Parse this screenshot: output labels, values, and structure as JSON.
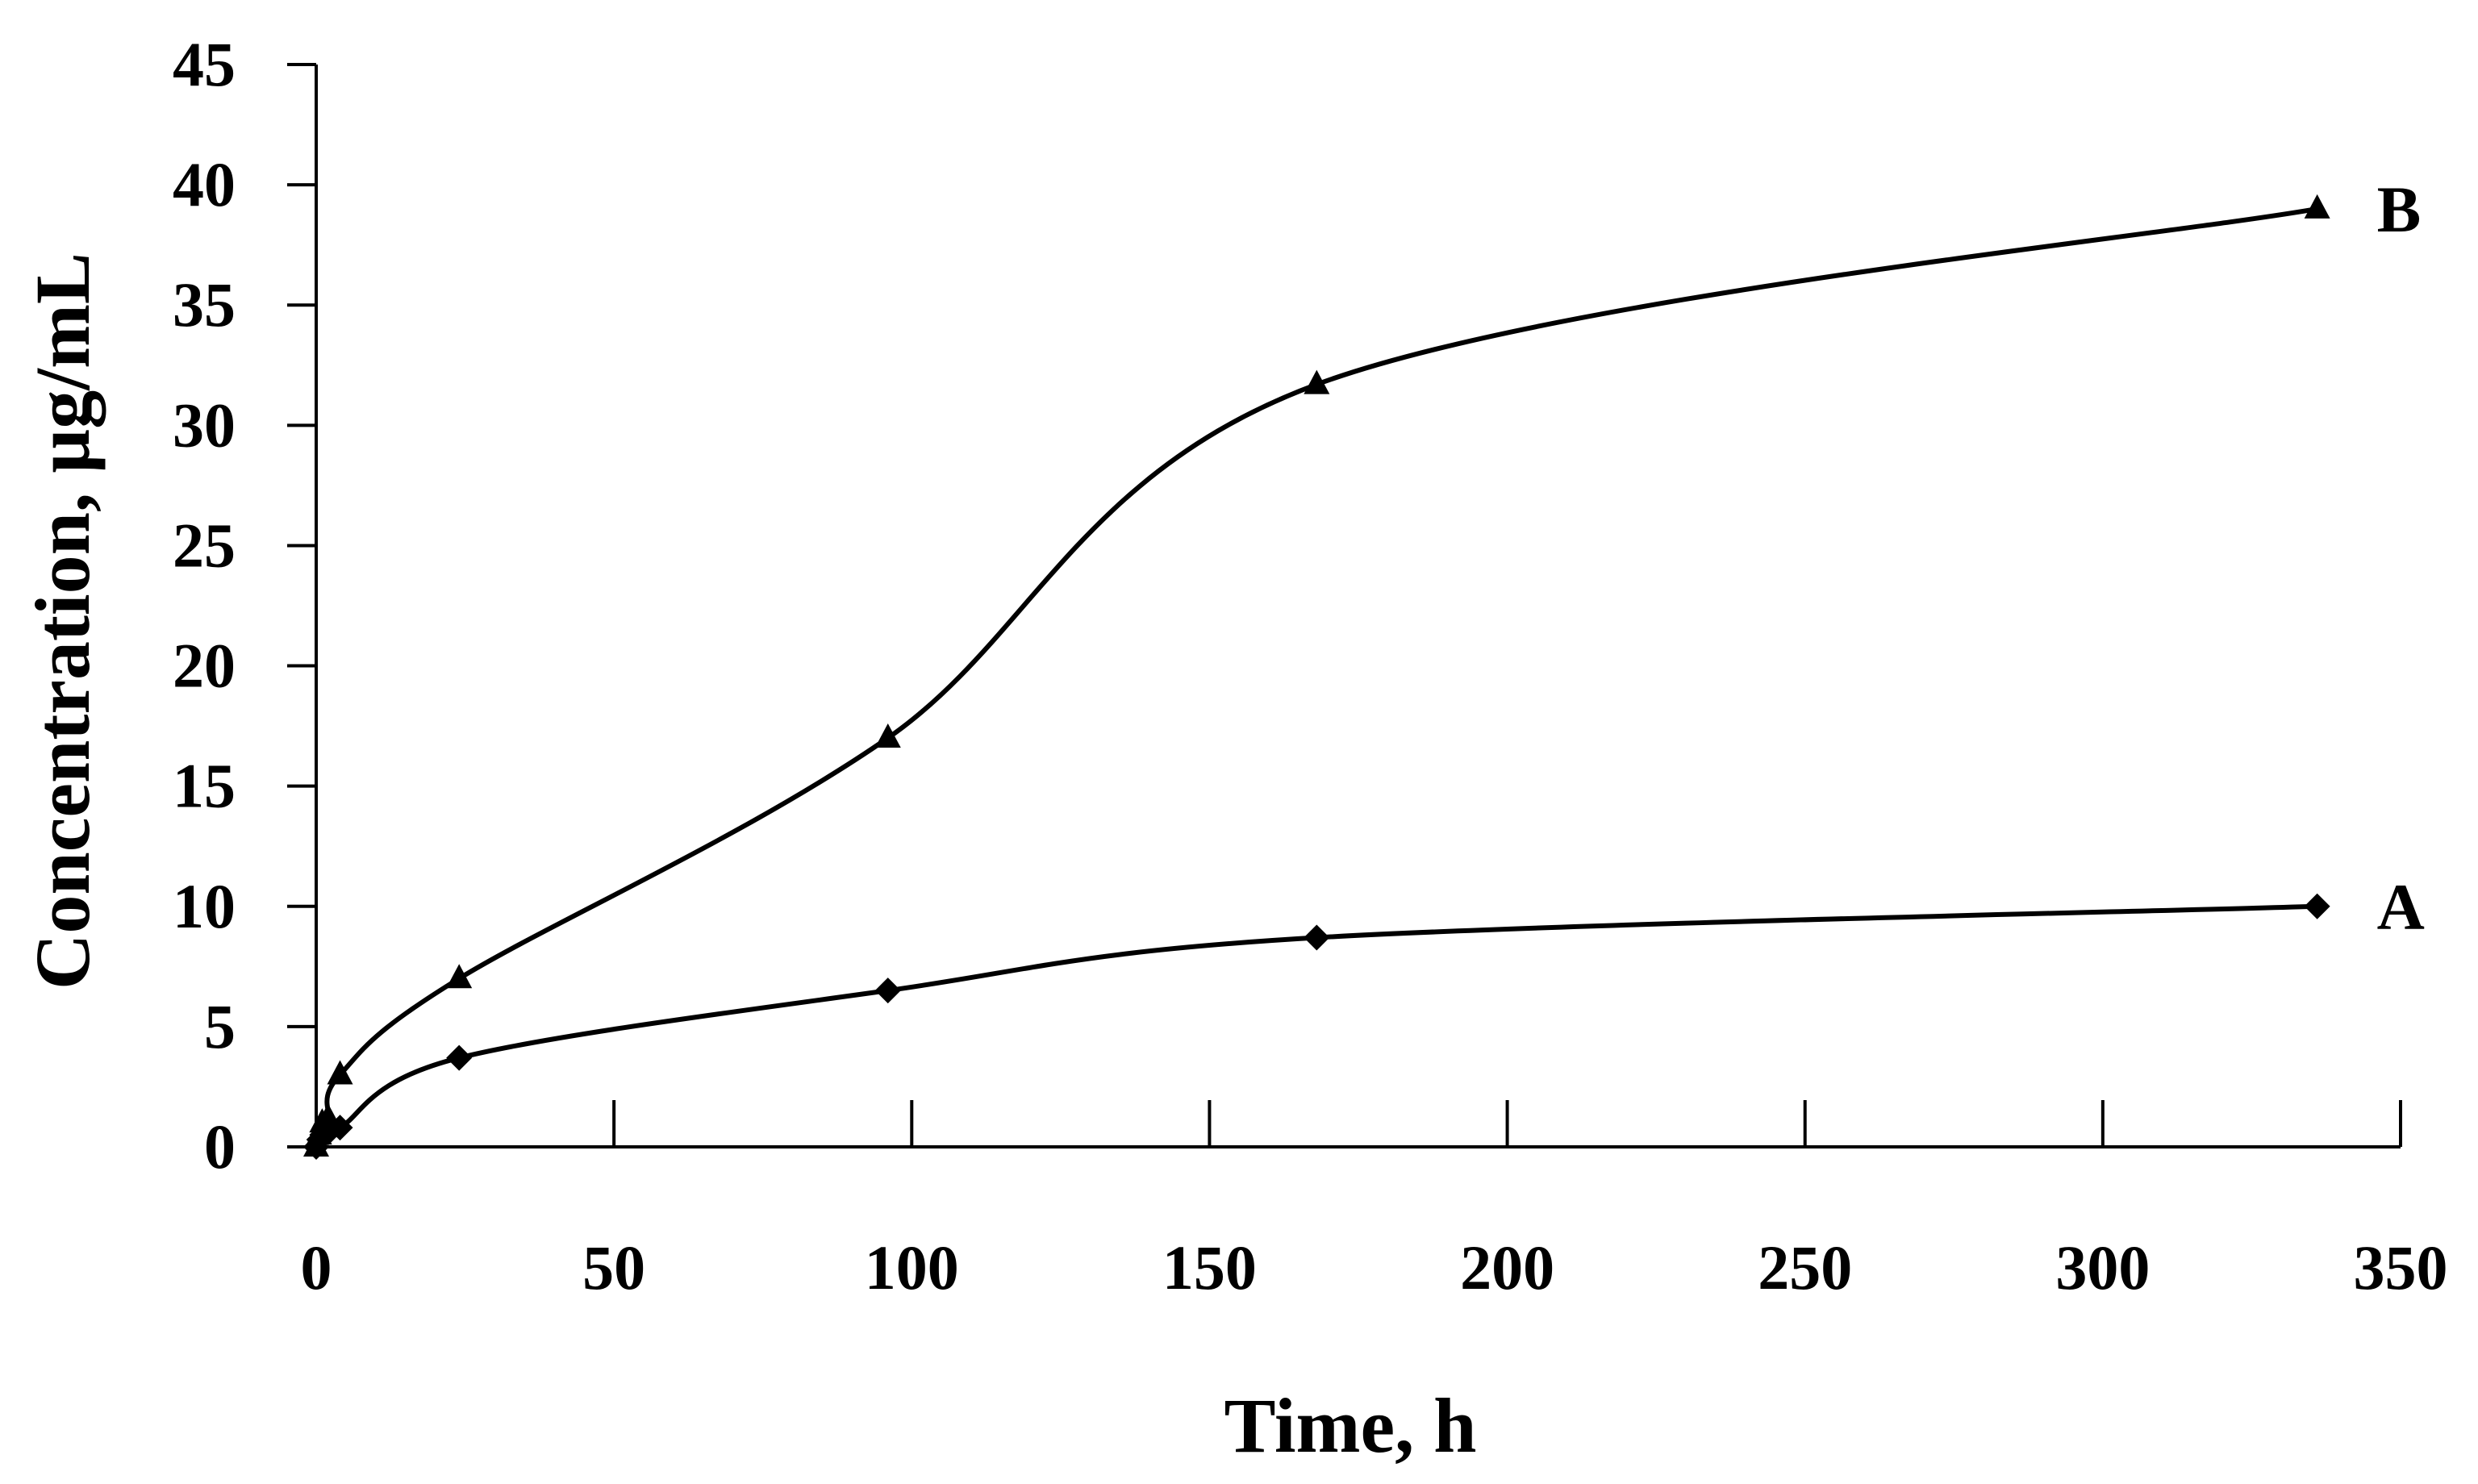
{
  "chart_data": {
    "type": "line",
    "title": "",
    "xlabel": "Time, h",
    "ylabel": "Concentration, µg/mL",
    "xlim": [
      0,
      350
    ],
    "ylim": [
      0,
      45
    ],
    "xticks": [
      0,
      50,
      100,
      150,
      200,
      250,
      300,
      350
    ],
    "yticks": [
      0,
      5,
      10,
      15,
      20,
      25,
      30,
      35,
      40,
      45
    ],
    "grid": false,
    "legend": "none",
    "series": [
      {
        "name": "A",
        "marker": "diamond",
        "color": "#000000",
        "x": [
          0,
          0.5,
          1,
          2,
          4,
          24,
          96,
          168,
          336
        ],
        "y": [
          0,
          0.3,
          0.5,
          0.6,
          0.8,
          3.7,
          6.5,
          8.7,
          10.0
        ]
      },
      {
        "name": "B",
        "marker": "triangle",
        "color": "#000000",
        "x": [
          0,
          0.5,
          1,
          2,
          4,
          24,
          96,
          168,
          336
        ],
        "y": [
          0,
          0.5,
          1.0,
          1.2,
          3.0,
          7.0,
          17.0,
          31.7,
          39.0
        ]
      }
    ]
  }
}
